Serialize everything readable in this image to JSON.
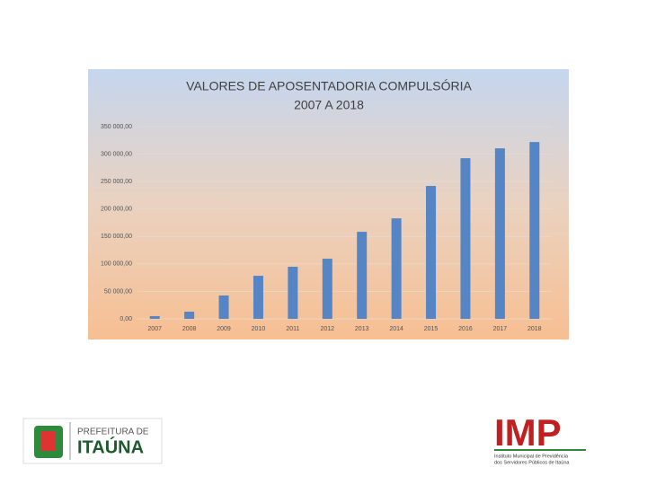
{
  "chart_data": {
    "type": "bar",
    "title": "VALORES DE APOSENTADORIA COMPULSÓRIA",
    "subtitle": "2007 A 2018",
    "categories": [
      "2007",
      "2008",
      "2009",
      "2010",
      "2011",
      "2012",
      "2013",
      "2014",
      "2015",
      "2016",
      "2017",
      "2018"
    ],
    "values": [
      5000,
      13000,
      42500,
      78400,
      94800,
      109500,
      158500,
      183000,
      242000,
      292500,
      310500,
      322000
    ],
    "color": "#5585c4",
    "ylim": [
      0,
      350000
    ],
    "yticks": [
      {
        "value": 0,
        "label": "0,00"
      },
      {
        "value": 50000,
        "label": "50 000,00"
      },
      {
        "value": 100000,
        "label": "100 000,00"
      },
      {
        "value": 150000,
        "label": "150 000,00"
      },
      {
        "value": 200000,
        "label": "200 000,00"
      },
      {
        "value": 250000,
        "label": "250 000,00"
      },
      {
        "value": 300000,
        "label": "300 000,00"
      },
      {
        "value": 350000,
        "label": "350 000,00"
      }
    ],
    "grid": true
  },
  "logos": {
    "left_top": "PREFEITURA DE",
    "left_main": "ITAÚNA",
    "right_main": "IMP",
    "right_line1": "Instituto Municipal de Previdência",
    "right_line2": "dos Servidores Públicos de Itaúna"
  }
}
